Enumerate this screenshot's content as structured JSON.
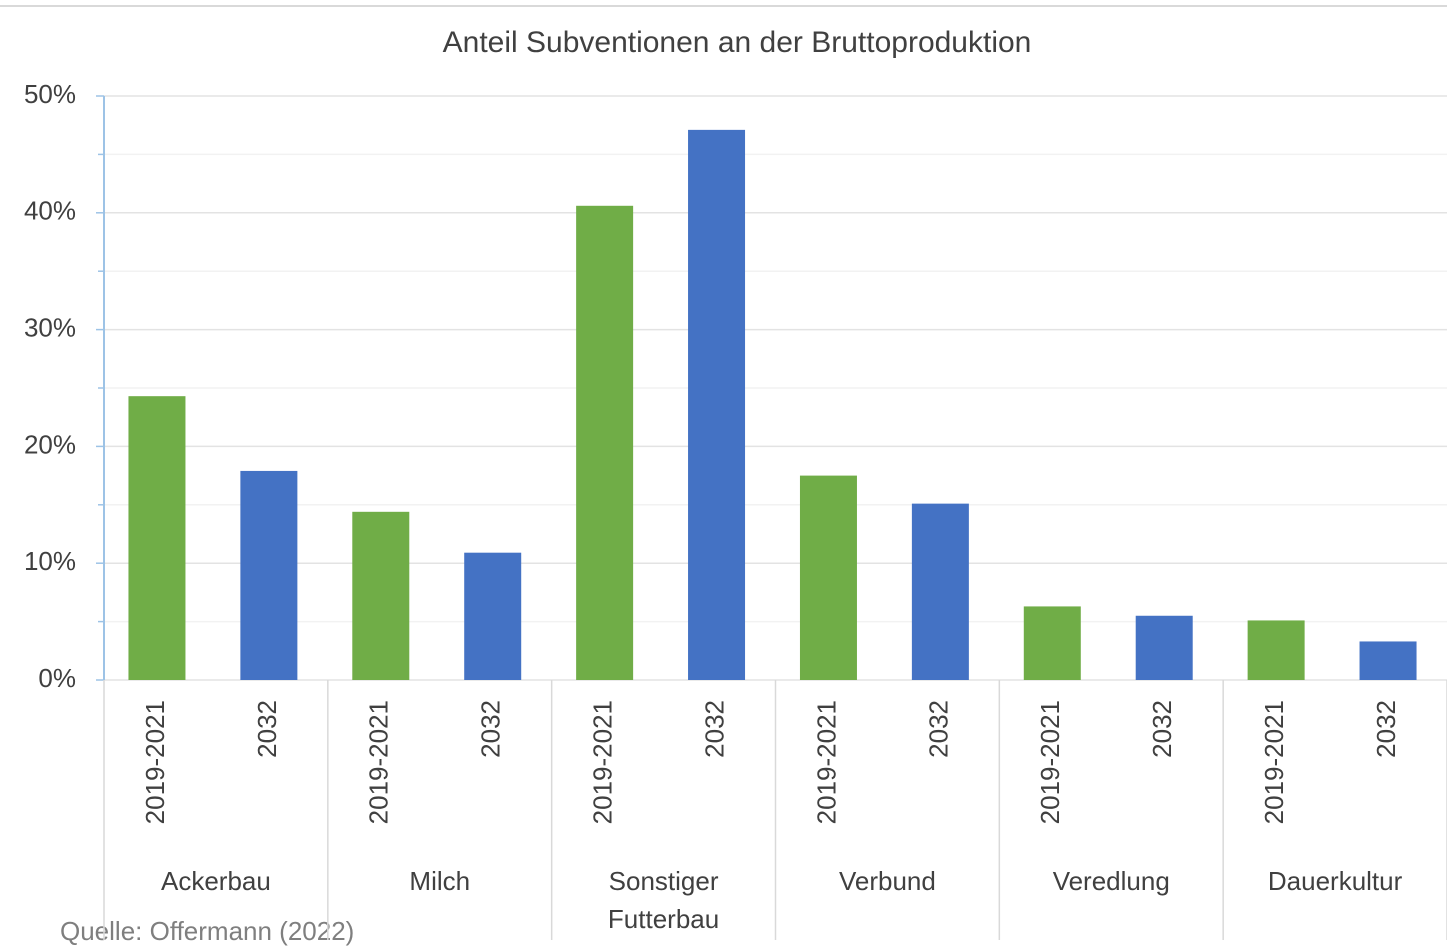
{
  "chart_data": {
    "type": "bar",
    "title": "Anteil Subventionen an der Bruttoproduktion",
    "categories": [
      "Ackerbau",
      "Milch",
      "Sonstiger Futterbau",
      "Verbund",
      "Veredlung",
      "Dauerkultur"
    ],
    "series": [
      {
        "name": "2019-2021",
        "color": "#70ad47",
        "values": [
          24.3,
          14.4,
          40.6,
          17.5,
          6.3,
          5.1
        ]
      },
      {
        "name": "2032",
        "color": "#4472c4",
        "values": [
          17.9,
          10.9,
          47.1,
          15.1,
          5.5,
          3.3
        ]
      }
    ],
    "ylim": [
      0,
      50
    ],
    "yticks": [
      {
        "value": 0,
        "label": "0%"
      },
      {
        "value": 10,
        "label": "10%"
      },
      {
        "value": 20,
        "label": "20%"
      },
      {
        "value": 30,
        "label": "30%"
      },
      {
        "value": 40,
        "label": "40%"
      },
      {
        "value": 50,
        "label": "50%"
      }
    ],
    "minor_yticks": [
      5,
      15,
      25,
      35,
      45
    ],
    "grid": true,
    "source": "Quelle: Offermann (2022)"
  }
}
